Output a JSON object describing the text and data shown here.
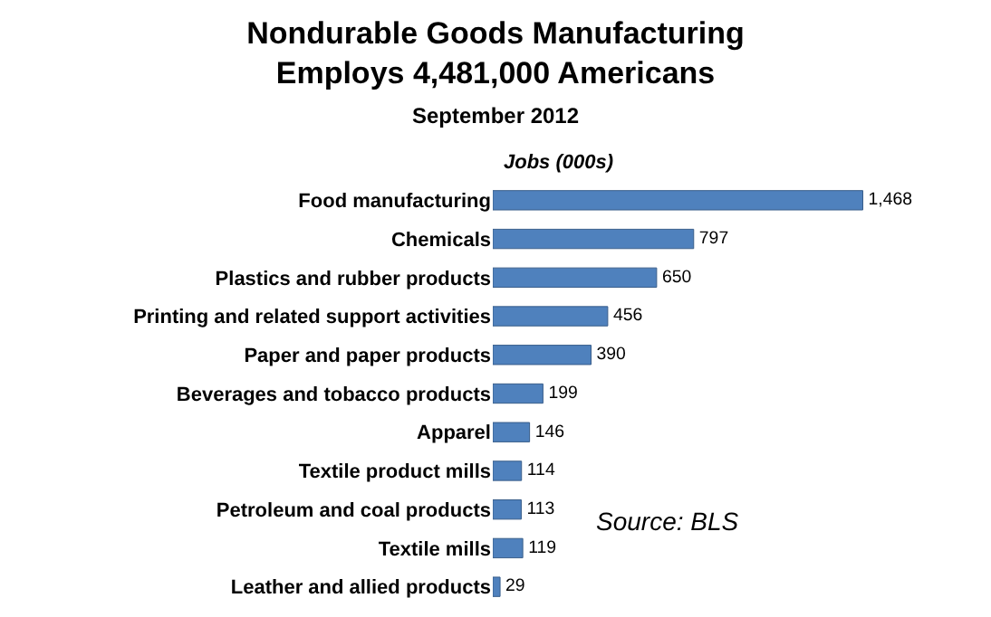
{
  "chart_data": {
    "type": "bar",
    "orientation": "horizontal",
    "title": "Nondurable Goods Manufacturing\nEmploys 4,481,000 Americans",
    "subtitle": "September 2012",
    "categories": [
      "Food manufacturing",
      "Chemicals",
      "Plastics and rubber products",
      "Printing and related support activities",
      "Paper and paper products",
      "Beverages and tobacco products",
      "Apparel",
      "Textile product mills",
      "Petroleum and coal products",
      "Textile mills",
      "Leather and allied products"
    ],
    "values": [
      1468,
      797,
      650,
      456,
      390,
      199,
      146,
      114,
      113,
      119,
      29
    ],
    "value_labels": [
      "1,468",
      "797",
      "650",
      "456",
      "390",
      "199",
      "146",
      "114",
      "113",
      "119",
      "29"
    ],
    "color": "#4f81bd",
    "annotations": [
      "Jobs (000s)",
      "Source: BLS"
    ],
    "legend": false
  }
}
